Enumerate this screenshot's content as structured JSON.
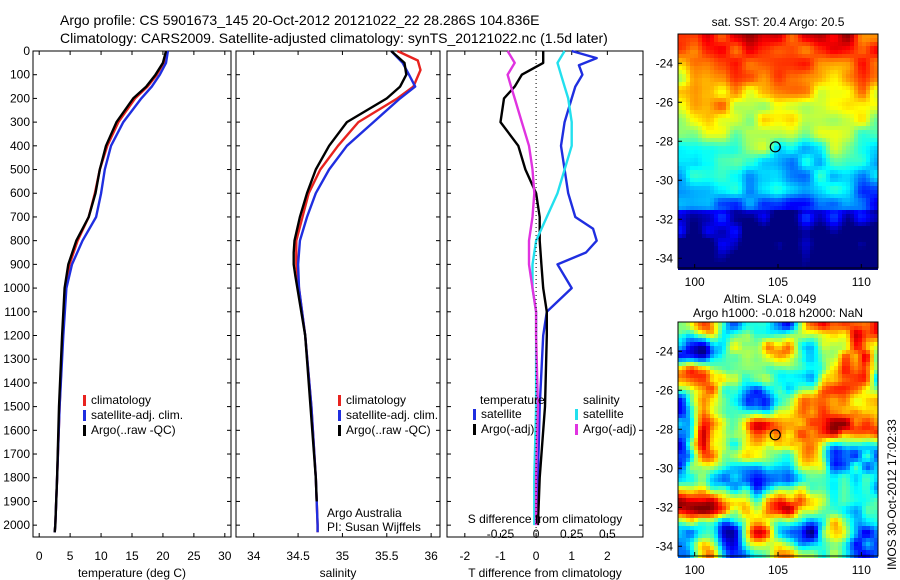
{
  "header": {
    "line1": "Argo profile: CS 5901673_145 20-Oct-2012 20121022_22 28.286S 104.836E",
    "line2": "Climatology: CARS2009. Satellite-adjusted climatology: synTS_20121022.nc (1.5d later)"
  },
  "side_label": "IMOS 30-Oct-2012 17:02:33",
  "colors": {
    "climatology": "#e8231f",
    "satellite": "#1f2ee0",
    "argo": "#000000",
    "sal_satellite": "#22e0ee",
    "sal_argo": "#e033e0"
  },
  "chart_data": [
    {
      "type": "line",
      "id": "temperature",
      "xlabel": "temperature (deg C)",
      "ylabel": "",
      "xlim": [
        -1,
        31
      ],
      "ylim": [
        2050,
        0
      ],
      "xticks": [
        0,
        5,
        10,
        15,
        20,
        25,
        30
      ],
      "yticks": [
        0,
        100,
        200,
        300,
        400,
        500,
        600,
        700,
        800,
        900,
        1000,
        1100,
        1200,
        1300,
        1400,
        1500,
        1600,
        1700,
        1800,
        1900,
        2000
      ],
      "legend": {
        "position": "lower-middle",
        "entries": [
          "climatology",
          "satellite-adj. clim.",
          "Argo(..raw -QC)"
        ]
      },
      "series": [
        {
          "name": "climatology",
          "color": "#e8231f",
          "depth": [
            0,
            50,
            100,
            150,
            200,
            300,
            400,
            500,
            600,
            700,
            800,
            900,
            1000,
            1200,
            1500,
            1800,
            2000,
            2030
          ],
          "values": [
            20.6,
            20.1,
            19.0,
            17.5,
            15.5,
            12.8,
            11.0,
            9.8,
            9.0,
            8.0,
            6.2,
            4.9,
            4.2,
            3.8,
            3.3,
            2.9,
            2.6,
            2.5
          ]
        },
        {
          "name": "satellite-adj. clim.",
          "color": "#1f2ee0",
          "depth": [
            0,
            50,
            100,
            150,
            200,
            300,
            400,
            500,
            600,
            700,
            800,
            900,
            1000,
            1200,
            1500,
            1800,
            2000,
            2030
          ],
          "values": [
            20.8,
            20.5,
            19.5,
            18.2,
            16.5,
            13.6,
            11.6,
            10.6,
            10.0,
            9.2,
            7.0,
            5.3,
            4.4,
            3.9,
            3.3,
            2.9,
            2.6,
            2.5
          ]
        },
        {
          "name": "Argo(..raw -QC)",
          "color": "#000000",
          "depth": [
            0,
            50,
            100,
            150,
            200,
            300,
            400,
            500,
            600,
            700,
            800,
            900,
            1000,
            1200,
            1500,
            1800,
            2000,
            2030
          ],
          "values": [
            20.5,
            20.0,
            18.8,
            17.3,
            15.2,
            12.5,
            10.8,
            9.8,
            9.1,
            8.0,
            6.0,
            4.7,
            4.1,
            3.7,
            3.2,
            2.9,
            2.6,
            2.5
          ]
        }
      ]
    },
    {
      "type": "line",
      "id": "salinity",
      "xlabel": "salinity",
      "ylabel": "",
      "xlim": [
        33.8,
        36.1
      ],
      "ylim": [
        2050,
        0
      ],
      "xticks": [
        34,
        34.5,
        35,
        35.5,
        36
      ],
      "legend": {
        "position": "lower-middle",
        "entries": [
          "climatology",
          "satellite-adj. clim.",
          "Argo(..raw -QC)"
        ]
      },
      "annotations": [
        "Argo Australia",
        "PI: Susan Wijffels"
      ],
      "series": [
        {
          "name": "climatology",
          "color": "#e8231f",
          "depth": [
            0,
            40,
            80,
            150,
            200,
            300,
            400,
            500,
            600,
            700,
            800,
            900,
            1000,
            1200,
            1500,
            1800,
            2000,
            2030
          ],
          "values": [
            35.62,
            35.85,
            35.88,
            35.8,
            35.62,
            35.18,
            34.95,
            34.75,
            34.62,
            34.55,
            34.48,
            34.48,
            34.51,
            34.58,
            34.65,
            34.7,
            34.72,
            34.72
          ]
        },
        {
          "name": "satellite-adj. clim.",
          "color": "#1f2ee0",
          "depth": [
            0,
            50,
            100,
            150,
            200,
            300,
            400,
            500,
            600,
            700,
            800,
            900,
            1000,
            1200,
            1500,
            1800,
            2000,
            2030
          ],
          "values": [
            35.55,
            35.68,
            35.75,
            35.82,
            35.65,
            35.35,
            35.05,
            34.85,
            34.7,
            34.6,
            34.52,
            34.5,
            34.51,
            34.58,
            34.65,
            34.7,
            34.72,
            34.72
          ]
        },
        {
          "name": "Argo(..raw -QC)",
          "color": "#000000",
          "depth": [
            0,
            50,
            100,
            150,
            200,
            300,
            400,
            500,
            600,
            700,
            800,
            850,
            900,
            950,
            1200,
            1500,
            1800,
            1900
          ],
          "values": [
            35.55,
            35.7,
            35.72,
            35.65,
            35.5,
            35.05,
            34.85,
            34.7,
            34.6,
            34.52,
            34.46,
            34.45,
            34.45,
            34.47,
            34.58,
            34.64,
            34.7,
            34.71
          ]
        }
      ]
    },
    {
      "type": "line",
      "id": "difference",
      "xlabel": "T difference from climatology",
      "xlabel_top": "S difference from climatology",
      "xlim": [
        -2.5,
        3
      ],
      "ylim": [
        2050,
        0
      ],
      "xticks": [
        -2,
        -1,
        0,
        1,
        2
      ],
      "xticks_s": {
        "positions": [
          -2,
          -1,
          0,
          1,
          2
        ],
        "labels": [
          "-0.5",
          "-0.25",
          "0",
          "0.25",
          "0.5"
        ]
      },
      "legend": {
        "position": "lower-middle",
        "groups": [
          {
            "title": "temperature",
            "entries": [
              "satellite",
              "Argo(-adj)"
            ]
          },
          {
            "title": "salinity",
            "entries": [
              "satellite",
              "Argo(-adj)"
            ]
          }
        ]
      },
      "series": [
        {
          "name": "temperature satellite",
          "color": "#1f2ee0",
          "depth": [
            0,
            30,
            60,
            100,
            150,
            200,
            300,
            400,
            500,
            600,
            700,
            750,
            800,
            850,
            900,
            950,
            1000,
            1100,
            1200,
            1500,
            1800,
            2000
          ],
          "values": [
            1.0,
            1.7,
            1.2,
            1.3,
            1.1,
            1.0,
            0.8,
            0.7,
            0.8,
            0.9,
            1.1,
            1.6,
            1.7,
            1.4,
            0.6,
            0.8,
            1.0,
            0.3,
            0.2,
            0.1,
            0.05,
            0.05
          ]
        },
        {
          "name": "temperature Argo(-adj)",
          "color": "#000000",
          "depth": [
            0,
            50,
            100,
            150,
            200,
            300,
            400,
            500,
            600,
            700,
            800,
            900,
            1000,
            1100,
            1200,
            1500,
            1800,
            2000
          ],
          "values": [
            0.2,
            0.2,
            -0.4,
            -0.6,
            -0.9,
            -1.0,
            -0.5,
            -0.3,
            0.0,
            0.1,
            0.1,
            0.15,
            0.2,
            0.3,
            0.3,
            0.25,
            0.1,
            0.05
          ]
        },
        {
          "name": "salinity satellite",
          "color": "#22e0ee",
          "depth": [
            0,
            50,
            100,
            150,
            200,
            300,
            400,
            500,
            600,
            700,
            800,
            900,
            1000,
            1100,
            1200,
            1500,
            1800,
            2000
          ],
          "values": [
            0.8,
            0.6,
            0.7,
            0.8,
            0.9,
            1.0,
            1.0,
            0.8,
            0.6,
            0.3,
            0.0,
            -0.1,
            -0.1,
            0.0,
            0.0,
            0.0,
            -0.05,
            -0.05
          ]
        },
        {
          "name": "salinity Argo(-adj)",
          "color": "#e033e0",
          "depth": [
            0,
            50,
            100,
            150,
            200,
            300,
            400,
            500,
            600,
            700,
            800,
            900,
            1000,
            1100,
            1200,
            1500,
            1800,
            2000
          ],
          "values": [
            -0.8,
            -0.6,
            -0.8,
            -0.7,
            -0.6,
            -0.4,
            -0.2,
            -0.1,
            -0.05,
            -0.1,
            -0.2,
            -0.2,
            -0.1,
            0.0,
            0.0,
            0.05,
            0.0,
            0.0
          ]
        }
      ]
    },
    {
      "type": "heatmap",
      "id": "sst_map",
      "title": "sat. SST: 20.4 Argo: 20.5",
      "xlim": [
        99,
        111
      ],
      "ylim": [
        -34.5,
        -22.5
      ],
      "xticks": [
        100,
        105,
        110
      ],
      "yticks": [
        -24,
        -26,
        -28,
        -30,
        -32,
        -34
      ],
      "marker": {
        "lon": 104.836,
        "lat": -28.286
      }
    },
    {
      "type": "heatmap",
      "id": "sla_map",
      "title": "Altim. SLA: 0.049",
      "subtitle": "Argo h1000: -0.018 h2000: NaN",
      "xlim": [
        99,
        111
      ],
      "ylim": [
        -34.5,
        -22.5
      ],
      "xticks": [
        100,
        105,
        110
      ],
      "yticks": [
        -24,
        -26,
        -28,
        -30,
        -32,
        -34
      ],
      "marker": {
        "lon": 104.836,
        "lat": -28.286
      }
    }
  ]
}
